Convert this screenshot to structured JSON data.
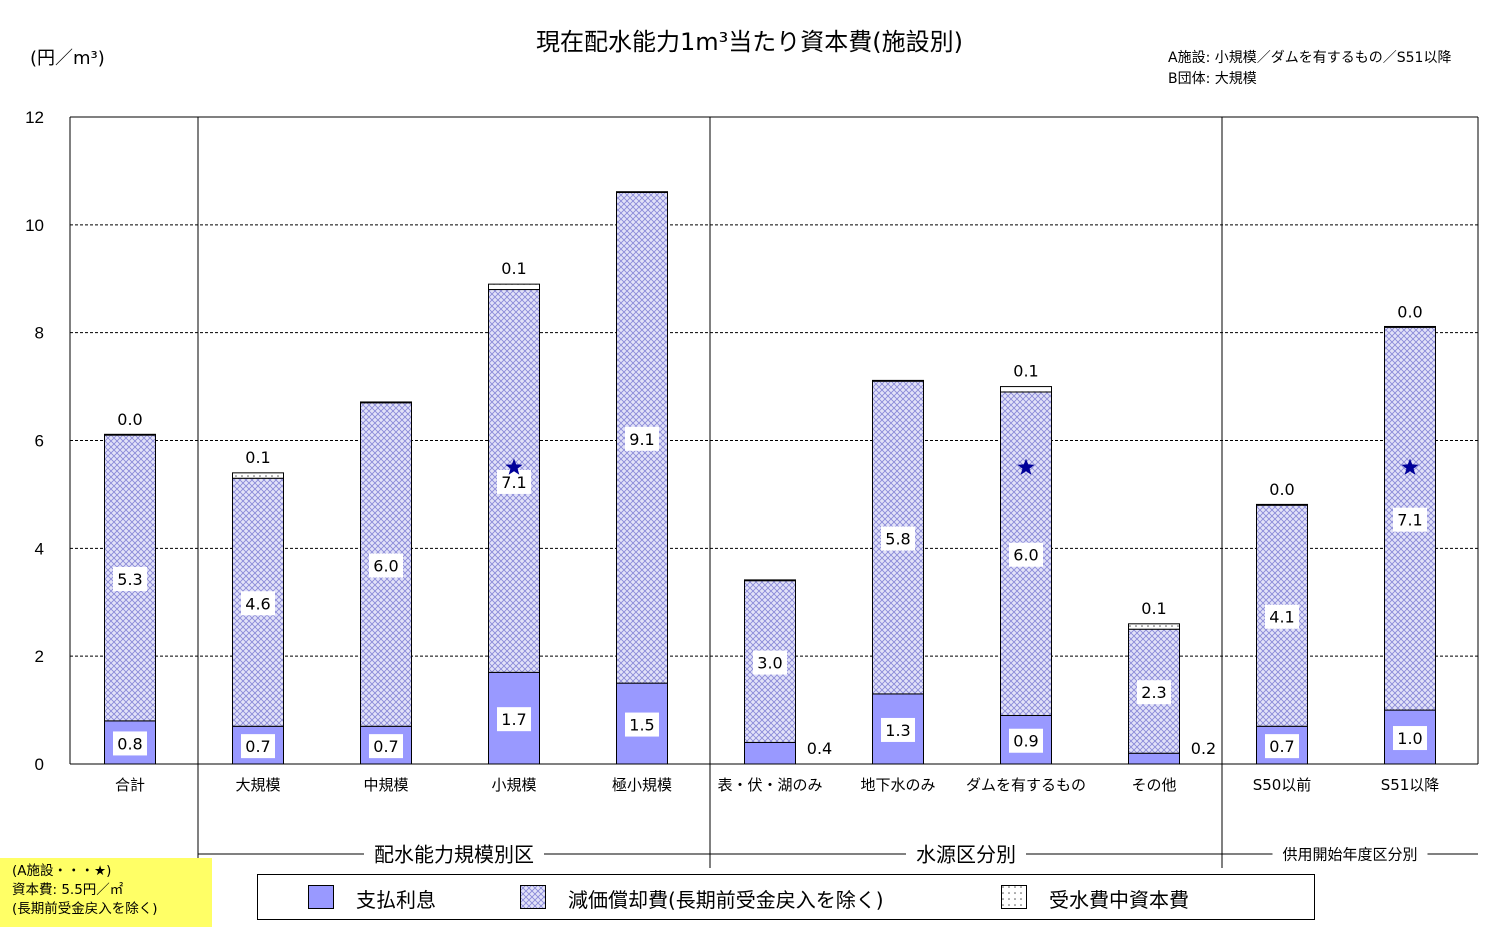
{
  "title": "現在配水能力1m³当たり資本費(施設別)",
  "unit_label": "(円／m³)",
  "note": {
    "line1": "A施設: 小規模／ダムを有するもの／S51以降",
    "line2": "B団体: 大規模"
  },
  "a_facility_box": {
    "line1": "(A施設・・・★)",
    "line2": "資本費: 5.5円／㎡",
    "line3": "(長期前受金戻入を除く)"
  },
  "legend": {
    "interest": "支払利息",
    "depreciation": "減価償却費(長期前受金戻入を除く)",
    "water_purchase": "受水費中資本費"
  },
  "colors": {
    "interest": "#9999ff",
    "depreciation": "#c8c8f0",
    "water_purchase": "#ffffff",
    "star": "#000099",
    "gridline": "#000000"
  },
  "chart_data": {
    "type": "bar",
    "stacked": true,
    "title": "現在配水能力1m³当たり資本費(施設別)",
    "ylabel": "(円／m³)",
    "ylim": [
      0,
      12
    ],
    "yticks": [
      0,
      2,
      4,
      6,
      8,
      10,
      12
    ],
    "grid": true,
    "legend_position": "bottom",
    "categories": [
      "合計",
      "大規模",
      "中規模",
      "小規模",
      "極小規模",
      "表・伏・湖のみ",
      "地下水のみ",
      "ダムを有するもの",
      "その他",
      "S50以前",
      "S51以降"
    ],
    "groups": [
      {
        "label": "",
        "start": 0,
        "end": 0
      },
      {
        "label": "配水能力規模別区",
        "start": 1,
        "end": 4
      },
      {
        "label": "水源区分別",
        "start": 5,
        "end": 8
      },
      {
        "label": "供用開始年度区分別",
        "start": 9,
        "end": 10
      }
    ],
    "series": [
      {
        "name": "支払利息",
        "values": [
          0.8,
          0.7,
          0.7,
          1.7,
          1.5,
          0.4,
          1.3,
          0.9,
          0.2,
          0.7,
          1.0
        ],
        "labels": [
          "0.8",
          "0.7",
          "0.7",
          "1.7",
          "1.5",
          "0.4",
          "1.3",
          "0.9",
          "0.2",
          "0.7",
          "1.0"
        ]
      },
      {
        "name": "減価償却費(長期前受金戻入を除く)",
        "values": [
          5.3,
          4.6,
          6.0,
          7.1,
          9.1,
          3.0,
          5.8,
          6.0,
          2.3,
          4.1,
          7.1
        ],
        "labels": [
          "5.3",
          "4.6",
          "6.0",
          "7.1",
          "9.1",
          "3.0",
          "5.8",
          "6.0",
          "2.3",
          "4.1",
          "7.1"
        ]
      },
      {
        "name": "受水費中資本費",
        "values": [
          0.0,
          0.1,
          0.0,
          0.1,
          0.0,
          0.0,
          0.0,
          0.1,
          0.1,
          0.0,
          0.0
        ],
        "labels": [
          "0.0",
          "0.1",
          "",
          "0.1",
          "",
          "",
          "",
          "0.1",
          "0.1",
          "0.0",
          "0.0"
        ]
      }
    ],
    "star_markers": [
      {
        "category": "小規模",
        "value": 5.5
      },
      {
        "category": "ダムを有するもの",
        "value": 5.5
      },
      {
        "category": "S51以降",
        "value": 5.5
      }
    ]
  }
}
